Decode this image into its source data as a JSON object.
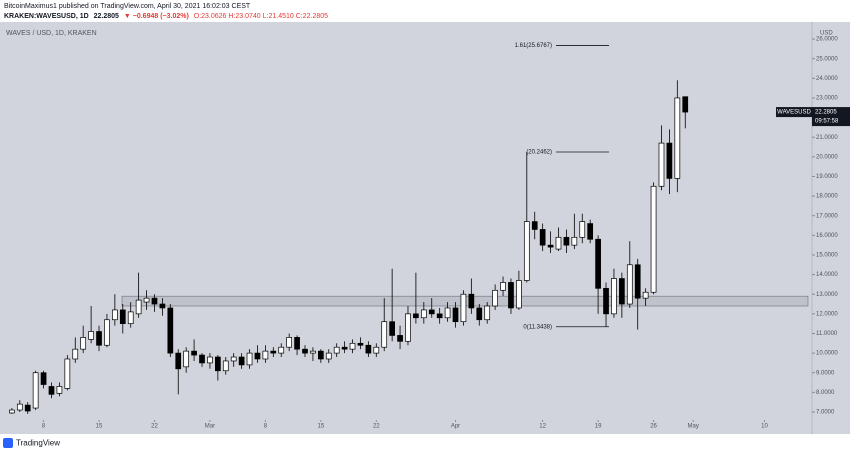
{
  "chart_data": {
    "type": "candlestick",
    "header": {
      "line1": "BitcoinMaximus1 published on TradingView.com, April 30, 2021 16:02:03 CEST",
      "symbol": "KRAKEN:WAVESUSD, 1D",
      "last": "22.2805",
      "change": "▼ −0.6948 (−3.02%)",
      "ohlc": "O:23.0626 H:23.0740 L:21.4510 C:22.2805"
    },
    "watermark": "WAVES / USD, 1D, KRAKEN",
    "y_axis_label": "USD",
    "footer": "TradingView",
    "open": [
      6.95,
      7.1,
      7.35,
      7.2,
      9.0,
      8.3,
      7.95,
      8.2,
      9.7,
      10.2,
      10.7,
      11.1,
      10.4,
      11.7,
      12.2,
      11.5,
      12.0,
      12.6,
      12.8,
      12.5,
      12.3,
      10.0,
      9.3,
      10.1,
      9.9,
      9.5,
      9.8,
      9.1,
      9.6,
      9.8,
      9.4,
      10.0,
      9.7,
      10.1,
      10.0,
      10.3,
      10.8,
      10.2,
      10.0,
      10.1,
      9.7,
      10.0,
      10.3,
      10.2,
      10.5,
      10.4,
      10.0,
      10.3,
      11.6,
      10.9,
      10.6,
      12.0,
      11.8,
      12.2,
      12.0,
      11.8,
      12.3,
      11.6,
      13.0,
      12.3,
      11.7,
      12.4,
      13.2,
      13.6,
      12.3,
      13.7,
      16.7,
      16.3,
      15.5,
      15.3,
      15.9,
      15.5,
      15.9,
      16.6,
      15.8,
      13.3,
      12.0,
      13.8,
      12.5,
      14.5,
      12.8,
      13.1,
      18.5,
      20.7,
      18.9,
      23.0626
    ],
    "high": [
      7.2,
      7.6,
      7.5,
      9.1,
      9.1,
      8.5,
      8.5,
      9.9,
      10.8,
      11.4,
      12.4,
      11.4,
      12.0,
      13.0,
      12.5,
      12.6,
      14.1,
      13.2,
      13.0,
      12.8,
      12.5,
      10.2,
      10.3,
      10.7,
      10.0,
      10.0,
      9.9,
      9.8,
      10.0,
      10.0,
      10.2,
      10.4,
      10.4,
      10.3,
      10.5,
      11.0,
      10.9,
      10.4,
      10.3,
      10.2,
      10.2,
      10.5,
      10.6,
      10.7,
      10.8,
      10.6,
      10.5,
      12.8,
      14.3,
      11.4,
      12.4,
      14.1,
      12.6,
      12.8,
      12.3,
      12.6,
      12.6,
      13.2,
      13.8,
      12.5,
      12.6,
      13.5,
      13.9,
      13.8,
      14.2,
      20.2462,
      17.2,
      16.6,
      16.2,
      16.4,
      16.3,
      17.1,
      17.1,
      16.8,
      16.0,
      13.6,
      14.3,
      14.1,
      15.7,
      14.8,
      13.3,
      18.7,
      21.6,
      21.4,
      23.9,
      23.074
    ],
    "low": [
      6.9,
      7.0,
      6.9,
      7.1,
      8.2,
      7.7,
      7.8,
      8.1,
      9.5,
      10.0,
      10.5,
      10.1,
      10.3,
      11.4,
      11.0,
      11.3,
      11.8,
      12.2,
      12.1,
      11.9,
      9.8,
      7.9,
      9.0,
      9.6,
      9.3,
      9.2,
      8.6,
      8.9,
      9.3,
      9.2,
      9.2,
      9.5,
      9.5,
      9.8,
      9.8,
      10.1,
      9.9,
      9.8,
      9.6,
      9.5,
      9.5,
      9.8,
      10.0,
      10.0,
      10.2,
      9.8,
      9.8,
      10.1,
      10.6,
      10.2,
      10.4,
      11.5,
      11.5,
      11.8,
      11.5,
      11.6,
      11.3,
      11.4,
      12.0,
      11.4,
      11.5,
      12.2,
      12.9,
      12.0,
      12.2,
      13.6,
      15.8,
      15.2,
      15.1,
      15.2,
      15.1,
      15.3,
      15.6,
      15.6,
      12.0,
      11.3438,
      11.8,
      11.8,
      12.3,
      11.2,
      12.4,
      13.0,
      18.3,
      18.1,
      18.2,
      21.451
    ],
    "close": [
      7.1,
      7.4,
      7.05,
      9.0,
      8.4,
      7.9,
      8.3,
      9.7,
      10.2,
      10.8,
      11.1,
      10.4,
      11.7,
      12.2,
      11.5,
      12.1,
      12.7,
      12.8,
      12.5,
      12.3,
      10.0,
      9.2,
      10.1,
      9.9,
      9.5,
      9.8,
      9.1,
      9.6,
      9.8,
      9.4,
      10.0,
      9.7,
      10.1,
      10.0,
      10.3,
      10.8,
      10.2,
      10.0,
      10.1,
      9.7,
      10.0,
      10.3,
      10.2,
      10.5,
      10.4,
      10.0,
      10.3,
      11.6,
      10.9,
      10.6,
      12.0,
      11.8,
      12.2,
      12.0,
      11.8,
      12.3,
      11.6,
      13.0,
      12.3,
      11.7,
      12.4,
      13.2,
      13.6,
      12.3,
      13.7,
      16.7,
      16.3,
      15.5,
      15.4,
      15.9,
      15.5,
      15.9,
      16.7,
      15.8,
      13.3,
      12.0,
      13.8,
      12.5,
      14.5,
      12.8,
      13.1,
      18.5,
      20.7,
      18.9,
      23.0,
      22.2805
    ],
    "up_color": "#ffffff",
    "down_color": "#000000",
    "xlim": [
      -1.5,
      101
    ],
    "xticks": [
      {
        "value": 4,
        "label": "8"
      },
      {
        "value": 11,
        "label": "15"
      },
      {
        "value": 18,
        "label": "22"
      },
      {
        "value": 25,
        "label": "Mar"
      },
      {
        "value": 32,
        "label": "8"
      },
      {
        "value": 39,
        "label": "15"
      },
      {
        "value": 46,
        "label": "22"
      },
      {
        "value": 56,
        "label": "Apr"
      },
      {
        "value": 67,
        "label": "12"
      },
      {
        "value": 74,
        "label": "19"
      },
      {
        "value": 81,
        "label": "26"
      },
      {
        "value": 86,
        "label": "May"
      },
      {
        "value": 95,
        "label": "10"
      }
    ],
    "ylim": [
      5.98,
      26.87
    ],
    "yticks": [
      {
        "value": 7,
        "label": "7.0000"
      },
      {
        "value": 8,
        "label": "8.0000"
      },
      {
        "value": 9,
        "label": "9.0000"
      },
      {
        "value": 10,
        "label": "10.0000"
      },
      {
        "value": 11,
        "label": "11.0000"
      },
      {
        "value": 12,
        "label": "12.0000"
      },
      {
        "value": 13,
        "label": "13.0000"
      },
      {
        "value": 14,
        "label": "14.0000"
      },
      {
        "value": 15,
        "label": "15.0000"
      },
      {
        "value": 16,
        "label": "16.0000"
      },
      {
        "value": 17,
        "label": "17.0000"
      },
      {
        "value": 18,
        "label": "18.0000"
      },
      {
        "value": 19,
        "label": "19.0000"
      },
      {
        "value": 20,
        "label": "20.0000"
      },
      {
        "value": 21,
        "label": "21.0000"
      },
      {
        "value": 22,
        "label": "22.0000"
      },
      {
        "value": 23,
        "label": "23.0000"
      },
      {
        "value": 24,
        "label": "24.0000"
      },
      {
        "value": 25,
        "label": "25.0000"
      },
      {
        "value": 26,
        "label": "26.0000"
      }
    ],
    "zone": {
      "low": 12.4,
      "high": 12.9
    },
    "fib_levels": [
      {
        "value": 25.6767,
        "label": "1.61(25.6767)"
      },
      {
        "value": 20.2462,
        "label": "(20.2462)"
      },
      {
        "value": 11.3438,
        "label": "0(11.3438)"
      }
    ],
    "price_tag": {
      "name": "WAVESUSD",
      "value": 22.2805,
      "time": "09:57:58"
    }
  }
}
